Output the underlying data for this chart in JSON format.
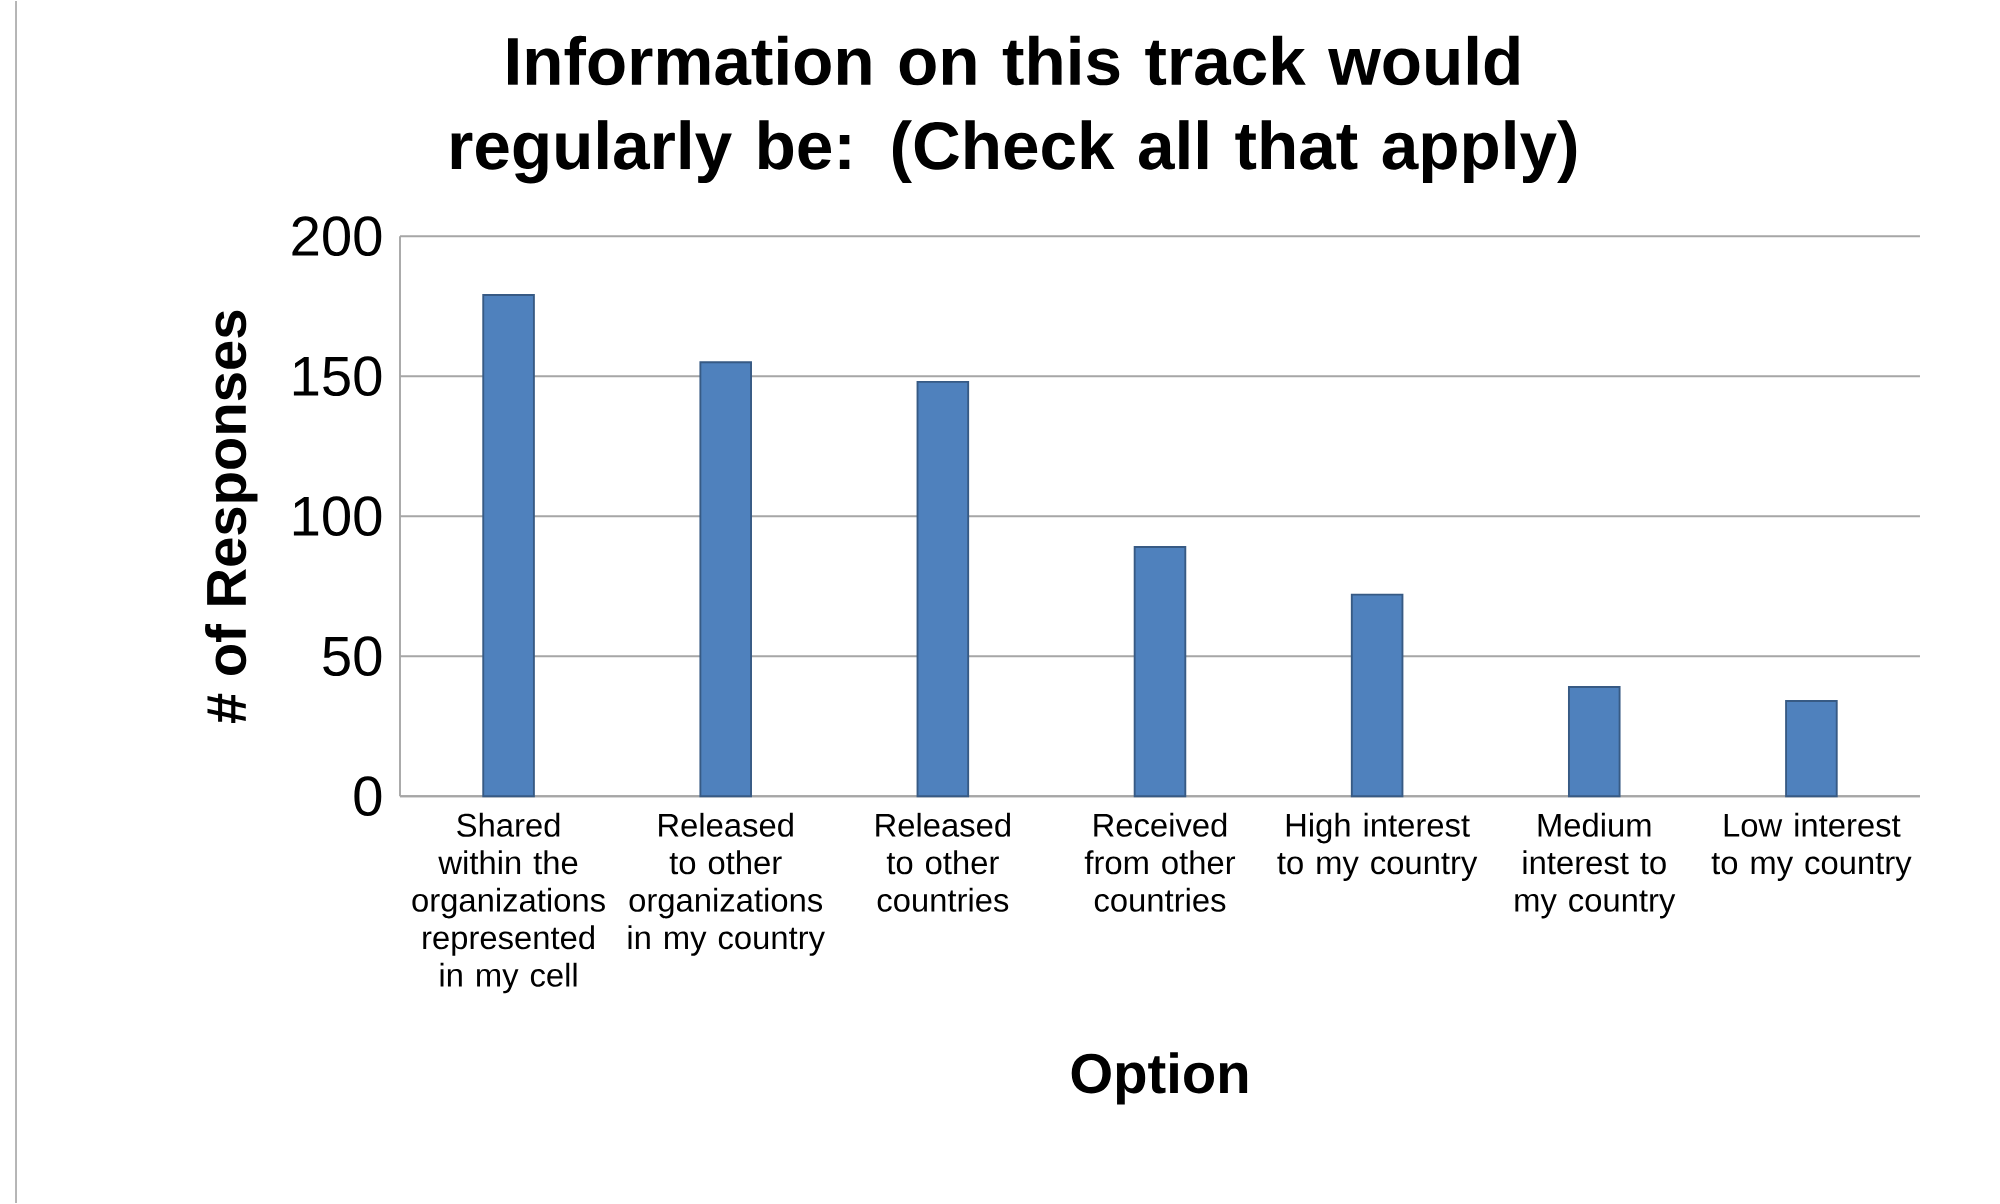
{
  "chart_data": {
    "type": "bar",
    "title": "Information on this track would regularly be: (Check all that apply)",
    "xlabel": "Option",
    "ylabel": "# of Responses",
    "categories": [
      "Shared within the organizations represented in my cell",
      "Released to other organizations in my country",
      "Released to other countries",
      "Received from other countries",
      "High interest to my country",
      "Medium interest to my country",
      "Low interest to my country"
    ],
    "values": [
      179,
      155,
      148,
      89,
      72,
      39,
      34
    ],
    "color": "#4f81bd",
    "ylim": [
      0,
      200
    ],
    "yticks": [
      0,
      50,
      100,
      150,
      200
    ],
    "grid": "y"
  }
}
